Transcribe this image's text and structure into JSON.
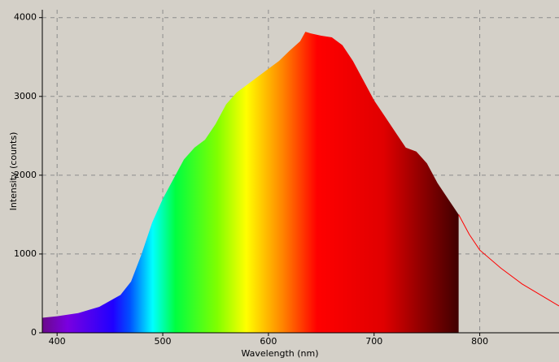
{
  "chart_data": {
    "type": "area",
    "x_label": "Wavelength (nm)",
    "y_label": "Intensity (counts)",
    "xlim": [
      386,
      875
    ],
    "ylim": [
      0,
      4100
    ],
    "xticks": [
      400,
      500,
      600,
      700,
      800
    ],
    "yticks": [
      0,
      1000,
      2000,
      3000,
      4000
    ],
    "grid": true,
    "series": [
      {
        "color": "#ff0000",
        "fill": "spectrum",
        "x": [
          386,
          400,
          420,
          440,
          460,
          470,
          480,
          490,
          500,
          510,
          520,
          530,
          540,
          550,
          560,
          570,
          580,
          590,
          600,
          610,
          620,
          630,
          635,
          640,
          650,
          660,
          670,
          680,
          690,
          700,
          710,
          720,
          730,
          740,
          750,
          760,
          770,
          780
        ],
        "values": [
          190,
          210,
          250,
          330,
          480,
          650,
          1000,
          1400,
          1700,
          1950,
          2200,
          2350,
          2450,
          2650,
          2900,
          3050,
          3150,
          3250,
          3350,
          3450,
          3580,
          3700,
          3820,
          3800,
          3770,
          3750,
          3650,
          3450,
          3200,
          2950,
          2750,
          2550,
          2350,
          2300,
          2150,
          1900,
          1700,
          1500
        ]
      },
      {
        "color": "#ff0000",
        "x": [
          780,
          790,
          800,
          820,
          840,
          860,
          875
        ],
        "values": [
          1500,
          1250,
          1050,
          820,
          620,
          460,
          340
        ]
      }
    ]
  }
}
